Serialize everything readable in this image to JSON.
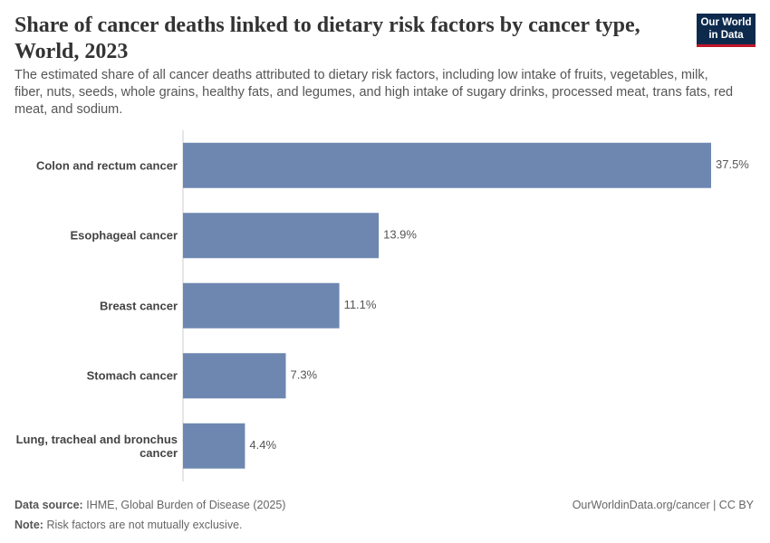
{
  "header": {
    "title": "Share of cancer deaths linked to dietary risk factors by cancer type, World, 2023",
    "subtitle": "The estimated share of all cancer deaths attributed to dietary risk factors, including low intake of fruits, vegetables, milk, fiber, nuts, seeds, whole grains, healthy fats, and legumes, and high intake of sugary drinks, processed meat, trans fats, red meat, and sodium.",
    "logo": [
      "Our World",
      "in Data"
    ]
  },
  "chart_data": {
    "type": "bar",
    "orientation": "horizontal",
    "categories": [
      "Colon and rectum cancer",
      "Esophageal cancer",
      "Breast cancer",
      "Stomach cancer",
      "Lung, tracheal and bronchus cancer"
    ],
    "values": [
      37.5,
      13.9,
      11.1,
      7.3,
      4.4
    ],
    "value_labels": [
      "37.5%",
      "13.9%",
      "11.1%",
      "7.3%",
      "4.4%"
    ],
    "color": "#6d87b0"
  },
  "footer": {
    "source_label": "Data source:",
    "source": "IHME, Global Burden of Disease (2025)",
    "url": "OurWorldinData.org/cancer | CC BY",
    "note_label": "Note:",
    "note": "Risk factors are not mutually exclusive."
  }
}
